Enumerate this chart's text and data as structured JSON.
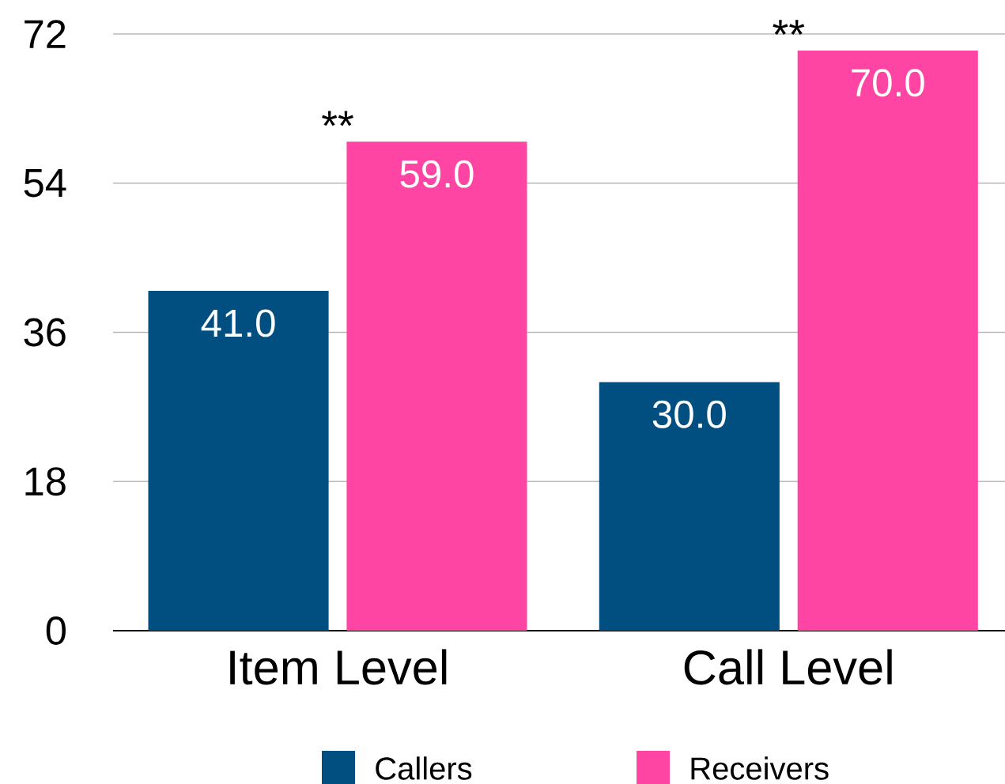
{
  "chart_data": {
    "type": "bar",
    "categories": [
      "Item Level",
      "Call Level"
    ],
    "series": [
      {
        "name": "Callers",
        "color": "#014f80",
        "values": [
          41,
          30
        ],
        "value_labels": [
          "41.0",
          "30.0"
        ]
      },
      {
        "name": "Receivers",
        "color": "#ff45a3",
        "values": [
          59,
          70
        ],
        "value_labels": [
          "59.0",
          "70.0"
        ]
      }
    ],
    "ylim": [
      0,
      72
    ],
    "yticks": [
      0,
      18,
      36,
      54,
      72
    ],
    "grid": "y",
    "legend": "bottom",
    "annotations": [
      "**",
      "**"
    ]
  }
}
